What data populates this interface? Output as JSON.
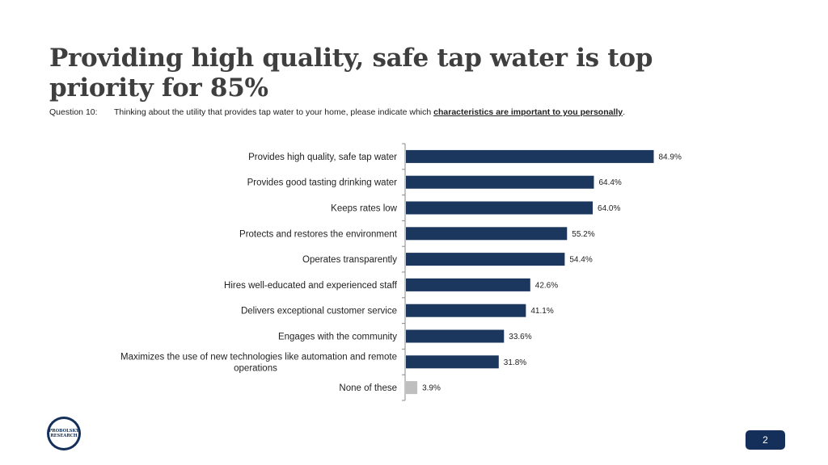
{
  "header": {
    "title_line1": "Providing high quality, safe tap water is top",
    "title_line2": "priority for 85%"
  },
  "question": {
    "label": "Question 10:",
    "text_before": "Thinking about the utility that provides tap water to your home, please indicate which ",
    "text_emphasis": "characteristics are important to you personally",
    "text_after": "."
  },
  "chart_data": {
    "type": "bar",
    "orientation": "horizontal",
    "categories": [
      "Provides high quality, safe tap water",
      "Provides good tasting drinking water",
      "Keeps rates low",
      "Protects and restores the environment",
      "Operates transparently",
      "Hires well-educated and experienced staff",
      "Delivers exceptional customer service",
      "Engages with the community",
      [
        "Maximizes the use of new technologies like automation and remote",
        "operations"
      ],
      "None of these"
    ],
    "values": [
      84.9,
      64.4,
      64.0,
      55.2,
      54.4,
      42.6,
      41.1,
      33.6,
      31.8,
      3.9
    ],
    "value_labels": [
      "84.9%",
      "64.4%",
      "64.0%",
      "55.2%",
      "54.4%",
      "42.6%",
      "41.1%",
      "33.6%",
      "31.8%",
      "3.9%"
    ],
    "colors": [
      "#1b375e",
      "#1b375e",
      "#1b375e",
      "#1b375e",
      "#1b375e",
      "#1b375e",
      "#1b375e",
      "#1b375e",
      "#1b375e",
      "#bfbfbf"
    ],
    "xlim": [
      0,
      100
    ],
    "grid": false,
    "legend": "none"
  },
  "logo": {
    "line1": "PROBOLSKY",
    "line2": "RESEARCH"
  },
  "footer": {
    "page_number": "2"
  }
}
